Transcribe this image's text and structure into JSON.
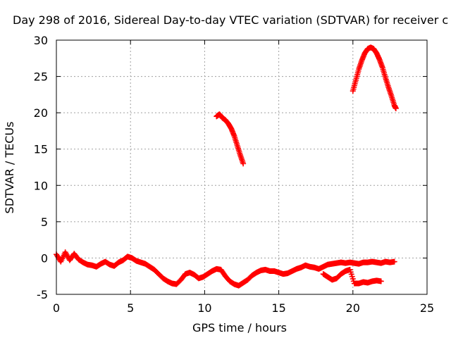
{
  "chart_data": {
    "type": "scatter",
    "title": "Day 298 of 2016, Sidereal Day-to-day VTEC variation (SDTVAR) for receiver c",
    "xlabel": "GPS time / hours",
    "ylabel": "SDTVAR / TECUs",
    "xlim": [
      0,
      25
    ],
    "ylim": [
      -5,
      30
    ],
    "xticks": [
      "0",
      "5",
      "10",
      "15",
      "20",
      "25"
    ],
    "yticks": [
      "-5",
      "0",
      "5",
      "10",
      "15",
      "20",
      "25",
      "30"
    ],
    "grid": true,
    "marker": "plus",
    "color": "#ff0000",
    "series": [
      {
        "values_note": "baseline cluster",
        "x": [
          0.0,
          0.3,
          0.6,
          0.9,
          1.2,
          1.5,
          1.8,
          2.1,
          2.4,
          2.7,
          3.0,
          3.3,
          3.6,
          3.9,
          4.2,
          4.5,
          4.8,
          5.1,
          5.4,
          5.7,
          6.0,
          6.3,
          6.6,
          6.9,
          7.2,
          7.5,
          7.8,
          8.1,
          8.4,
          8.7,
          9.0,
          9.3,
          9.6,
          9.9,
          10.2,
          10.5,
          10.8,
          11.1,
          11.4,
          11.7,
          12.0,
          12.3,
          12.6,
          12.9,
          13.2,
          13.5,
          13.8,
          14.1,
          14.4,
          14.7,
          15.0,
          15.3,
          15.6,
          15.9,
          16.2,
          16.5,
          16.8,
          17.1,
          17.4,
          17.7,
          18.0,
          18.3,
          18.6,
          18.9,
          19.2,
          19.5,
          19.8,
          20.1,
          20.4,
          20.7,
          21.0,
          21.3,
          21.6,
          21.9,
          22.2,
          22.5,
          22.8
        ],
        "y": [
          0.5,
          -0.5,
          0.8,
          -0.3,
          0.6,
          -0.2,
          -0.6,
          -0.9,
          -1.0,
          -1.2,
          -0.8,
          -0.5,
          -0.9,
          -1.1,
          -0.6,
          -0.3,
          0.2,
          0.0,
          -0.4,
          -0.6,
          -0.8,
          -1.2,
          -1.6,
          -2.2,
          -2.8,
          -3.2,
          -3.5,
          -3.6,
          -3.0,
          -2.2,
          -2.0,
          -2.3,
          -2.8,
          -2.6,
          -2.2,
          -1.8,
          -1.5,
          -1.6,
          -2.5,
          -3.2,
          -3.6,
          -3.8,
          -3.4,
          -3.0,
          -2.4,
          -2.0,
          -1.7,
          -1.6,
          -1.8,
          -1.8,
          -2.0,
          -2.2,
          -2.1,
          -1.8,
          -1.5,
          -1.3,
          -1.0,
          -1.2,
          -1.3,
          -1.5,
          -1.2,
          -0.9,
          -0.8,
          -0.7,
          -0.6,
          -0.7,
          -0.6,
          -0.7,
          -0.8,
          -0.6,
          -0.6,
          -0.5,
          -0.6,
          -0.7,
          -0.5,
          -0.6,
          -0.5
        ]
      },
      {
        "values_note": "lower cluster",
        "x": [
          18.0,
          18.3,
          18.6,
          18.9,
          19.2,
          19.5,
          19.8,
          20.1,
          20.4,
          20.7,
          21.0,
          21.3,
          21.6,
          21.9
        ],
        "y": [
          -2.2,
          -2.6,
          -3.0,
          -2.8,
          -2.2,
          -1.8,
          -1.6,
          -3.5,
          -3.5,
          -3.3,
          -3.4,
          -3.2,
          -3.1,
          -3.2
        ]
      },
      {
        "values_note": "arc near 11-12.5 h",
        "x": [
          10.8,
          11.0,
          11.2,
          11.4,
          11.6,
          11.8,
          12.0,
          12.2,
          12.4,
          12.6
        ],
        "y": [
          19.5,
          19.8,
          19.3,
          19.0,
          18.5,
          17.8,
          16.8,
          15.5,
          14.2,
          13.0
        ]
      },
      {
        "values_note": "arc near 20-23 h",
        "x": [
          20.0,
          20.2,
          20.4,
          20.6,
          20.8,
          21.0,
          21.2,
          21.4,
          21.6,
          21.8,
          22.0,
          22.2,
          22.4,
          22.6,
          22.8,
          22.9
        ],
        "y": [
          23.0,
          24.5,
          26.0,
          27.2,
          28.2,
          28.8,
          29.0,
          28.8,
          28.2,
          27.3,
          26.2,
          24.8,
          23.5,
          22.3,
          21.0,
          20.6
        ]
      }
    ]
  }
}
